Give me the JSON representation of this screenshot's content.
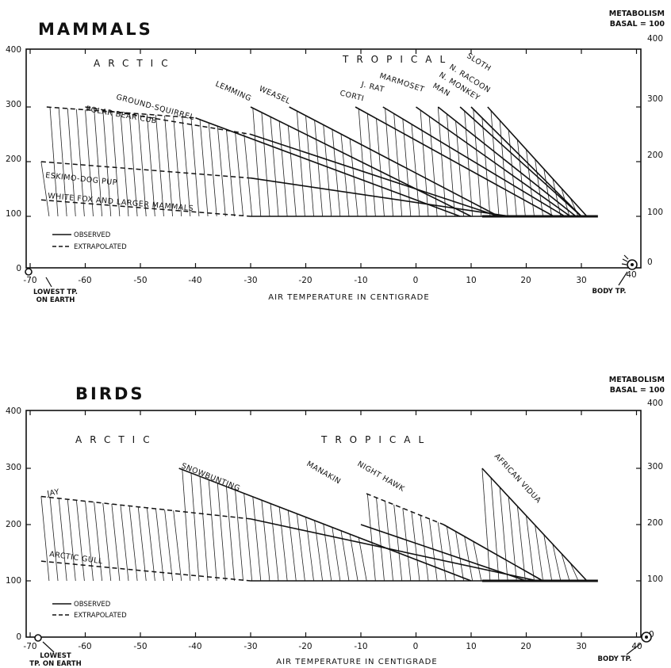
{
  "charts": [
    {
      "title": "MAMMALS",
      "right_axis_title": "METABOLISM",
      "right_axis_subtitle": "BASAL = 100",
      "xlabel": "AIR TEMPERATURE IN CENTIGRADE",
      "regions": [
        "ARCTIC",
        "TROPICAL"
      ],
      "lowest_label": [
        "LOWEST TP.",
        "ON EARTH"
      ],
      "body_label": "BODY TP.",
      "legend": {
        "observed": "OBSERVED",
        "extrapolated": "EXTRAPOLATED"
      },
      "left_ticks": [
        "400",
        "300",
        "200",
        "100",
        "0"
      ],
      "right_ticks": [
        "400",
        "300",
        "200",
        "100",
        "0"
      ],
      "x_ticks": [
        "-70",
        "-60",
        "-50",
        "-40",
        "-30",
        "-20",
        "-10",
        "0",
        "10",
        "20",
        "30",
        "40"
      ]
    },
    {
      "title": "BIRDS",
      "right_axis_title": "METABOLISM",
      "right_axis_subtitle": "BASAL = 100",
      "xlabel": "AIR TEMPERATURE IN CENTIGRADE",
      "regions": [
        "ARCTIC",
        "TROPICAL"
      ],
      "lowest_label": [
        "LOWEST",
        "TP. ON EARTH"
      ],
      "body_label": "BODY TP.",
      "legend": {
        "observed": "OBSERVED",
        "extrapolated": "EXTRAPOLATED"
      },
      "left_ticks": [
        "400",
        "300",
        "200",
        "100",
        "0"
      ],
      "right_ticks": [
        "400",
        "300",
        "200",
        "100",
        "0"
      ],
      "x_ticks": [
        "-70",
        "-60",
        "-50",
        "-40",
        "-30",
        "-20",
        "-10",
        "0",
        "10",
        "20",
        "30",
        "40"
      ]
    }
  ],
  "chart_data": [
    {
      "type": "line",
      "title": "MAMMALS",
      "xlabel": "AIR TEMPERATURE IN CENTIGRADE",
      "ylabel": "METABOLISM BASAL = 100",
      "xlim": [
        -70,
        40
      ],
      "ylim": [
        0,
        400
      ],
      "lowest_temp": -68,
      "body_temp": 37,
      "series": [
        {
          "name": "SLOTH",
          "observed": [
            [
              13,
              300
            ],
            [
              31,
              100
            ]
          ],
          "extrapolated": []
        },
        {
          "name": "N. RACOON",
          "observed": [
            [
              10,
              300
            ],
            [
              30,
              100
            ]
          ],
          "extrapolated": []
        },
        {
          "name": "N. MONKEY",
          "observed": [
            [
              8,
              300
            ],
            [
              30,
              100
            ]
          ],
          "extrapolated": []
        },
        {
          "name": "MAN",
          "observed": [
            [
              4,
              300
            ],
            [
              29,
              100
            ]
          ],
          "extrapolated": []
        },
        {
          "name": "MARMOSET",
          "observed": [
            [
              0,
              300
            ],
            [
              28,
              100
            ]
          ],
          "extrapolated": []
        },
        {
          "name": "J. RAT",
          "observed": [
            [
              -6,
              300
            ],
            [
              27,
              100
            ]
          ],
          "extrapolated": []
        },
        {
          "name": "CORTI",
          "observed": [
            [
              -11,
              300
            ],
            [
              25,
              100
            ]
          ],
          "extrapolated": []
        },
        {
          "name": "WEASEL",
          "observed": [
            [
              -23,
              300
            ],
            [
              15,
              100
            ]
          ],
          "extrapolated": []
        },
        {
          "name": "LEMMING",
          "observed": [
            [
              -30,
              300
            ],
            [
              10,
              100
            ]
          ],
          "extrapolated": []
        },
        {
          "name": "GROUND-SQUIRREL",
          "observed": [
            [
              -40,
              280
            ],
            [
              8,
              100
            ]
          ],
          "extrapolated": [
            [
              -67,
              300
            ],
            [
              -40,
              280
            ]
          ]
        },
        {
          "name": "POLAR BEAR CUB",
          "observed": [
            [
              -30,
              250
            ],
            [
              15,
              100
            ]
          ],
          "extrapolated": [
            [
              -60,
              300
            ],
            [
              -30,
              250
            ]
          ]
        },
        {
          "name": "ESKIMO-DOG PUP",
          "observed": [
            [
              -30,
              170
            ],
            [
              17,
              100
            ]
          ],
          "extrapolated": [
            [
              -68,
              200
            ],
            [
              -30,
              170
            ]
          ]
        },
        {
          "name": "WHITE FOX AND LARGER MAMMALS",
          "observed": [
            [
              -30,
              100
            ],
            [
              30,
              100
            ]
          ],
          "extrapolated": [
            [
              -68,
              130
            ],
            [
              -30,
              100
            ]
          ]
        }
      ]
    },
    {
      "type": "line",
      "title": "BIRDS",
      "xlabel": "AIR TEMPERATURE IN CENTIGRADE",
      "ylabel": "METABOLISM BASAL = 100",
      "xlim": [
        -70,
        40
      ],
      "ylim": [
        0,
        400
      ],
      "lowest_temp": -68,
      "body_temp": 40,
      "series": [
        {
          "name": "AFRICAN VIDUA",
          "observed": [
            [
              12,
              300
            ],
            [
              31,
              100
            ]
          ],
          "extrapolated": []
        },
        {
          "name": "NIGHT HAWK",
          "observed": [
            [
              5,
              200
            ],
            [
              23,
              100
            ]
          ],
          "extrapolated": [
            [
              -9,
              255
            ],
            [
              5,
              200
            ]
          ]
        },
        {
          "name": "MANAKIN",
          "observed": [
            [
              -10,
              200
            ],
            [
              20,
              100
            ]
          ],
          "extrapolated": []
        },
        {
          "name": "SNOWBUNTING",
          "observed": [
            [
              -43,
              300
            ],
            [
              10,
              100
            ]
          ],
          "extrapolated": []
        },
        {
          "name": "JAY",
          "observed": [
            [
              -30,
              210
            ],
            [
              22,
              100
            ]
          ],
          "extrapolated": [
            [
              -68,
              250
            ],
            [
              -30,
              210
            ]
          ]
        },
        {
          "name": "ARCTIC GULL",
          "observed": [
            [
              -30,
              100
            ],
            [
              32,
              100
            ]
          ],
          "extrapolated": [
            [
              -68,
              135
            ],
            [
              -30,
              100
            ]
          ]
        }
      ]
    }
  ]
}
